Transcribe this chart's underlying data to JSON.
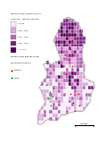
{
  "legend_title_line1": "Mortality from Cancer (ICD-10",
  "legend_title_line2": "code C67), rate per 100,000",
  "legend_labels": [
    "< 0.50",
    "0.50 - 0.99",
    "1.00 - 1.49",
    "1.50 - 1.99",
    ">= 2.00"
  ],
  "legend_colors": [
    "#f5eef8",
    "#dba8dc",
    "#b565b3",
    "#7b1f82",
    "#4a0050"
  ],
  "dot_legend_title": "Mortality from Bladder Cancer",
  "dot_legend_subtitle": "(as Statistical Outlier)",
  "dot_legend_labels": [
    "England",
    "Wales"
  ],
  "dot_colors": [
    "#cc0000",
    "#009900"
  ],
  "background_color": "#ffffff",
  "border_color": "#aaaaaa",
  "map_fill_default": "#c89ac8",
  "scale_bar_label": "100 km"
}
